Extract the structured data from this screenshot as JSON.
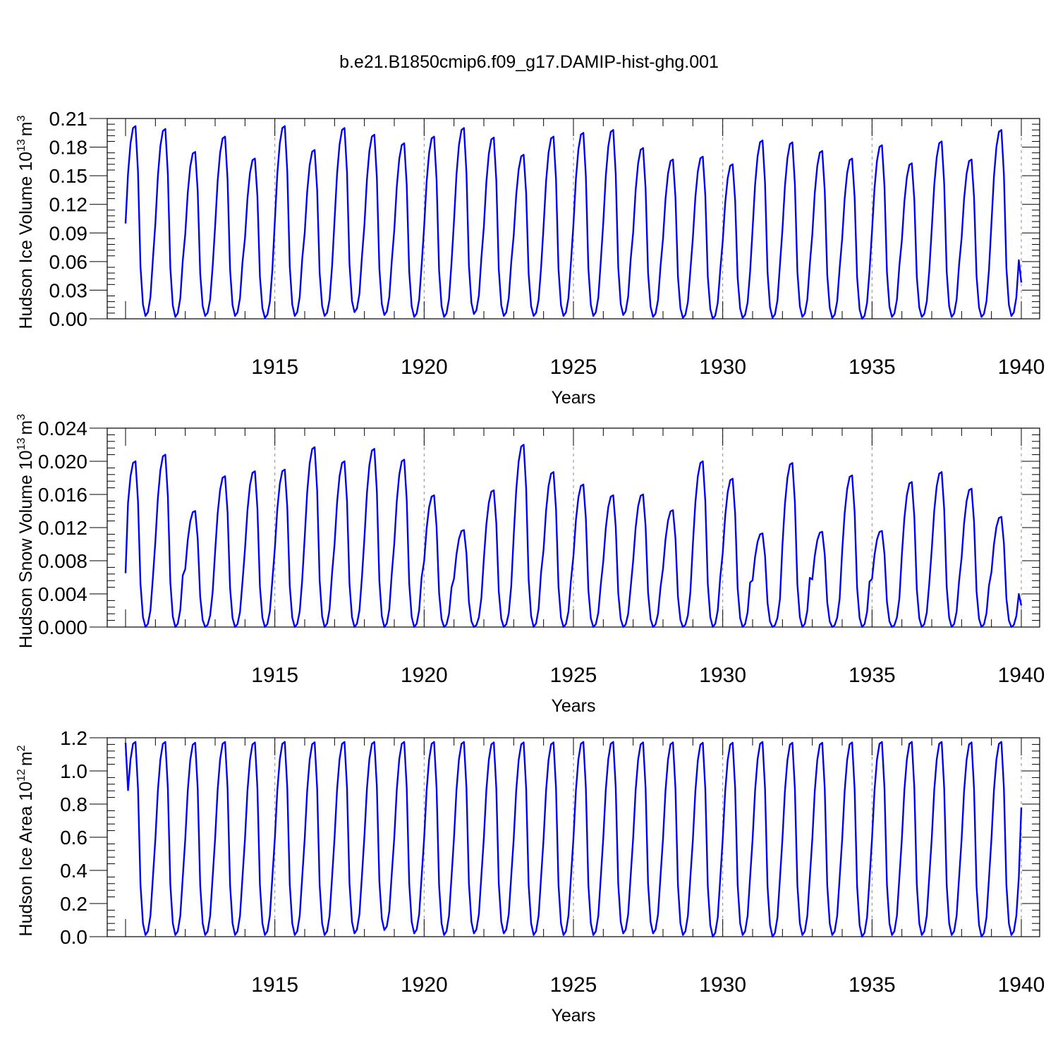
{
  "figure_title": "b.e21.B1850cmip6.f09_g17.DAMIP-hist-ghg.001",
  "colors": {
    "series": "#0000ff",
    "axes": "#000000",
    "grid": "#888888"
  },
  "chart_data": [
    {
      "type": "line",
      "ylabel": {
        "text": "Hudson Ice Volume 10",
        "exp": "13",
        "unit": "m",
        "unit_exp": "3"
      },
      "xlabel": "Years",
      "xlim": [
        1910,
        1940
      ],
      "ylim": [
        0.0,
        0.21
      ],
      "yticks": [
        "0.00",
        "0.03",
        "0.06",
        "0.09",
        "0.12",
        "0.15",
        "0.18",
        "0.21"
      ],
      "xticks": [
        "1915",
        "1920",
        "1925",
        "1930",
        "1935",
        "1940"
      ],
      "grid": "vertical dashed at labeled years",
      "start_value": 0.1,
      "start_month_index": 0,
      "end_value": 0.038,
      "series": [
        {
          "name": "Hudson Ice Volume",
          "annual_peaks": [
            0.202,
            0.199,
            0.175,
            0.191,
            0.168,
            0.202,
            0.177,
            0.2,
            0.193,
            0.184,
            0.191,
            0.2,
            0.19,
            0.172,
            0.191,
            0.195,
            0.198,
            0.179,
            0.167,
            0.17,
            0.162,
            0.187,
            0.185,
            0.176,
            0.168,
            0.182,
            0.163,
            0.186,
            0.167,
            0.198
          ],
          "annual_minimums": [
            0.003,
            0.002,
            0.003,
            0.003,
            0.001,
            0.003,
            0.003,
            0.007,
            0.004,
            0.002,
            0.002,
            0.005,
            0.003,
            0.003,
            0.003,
            0.003,
            0.004,
            0.002,
            0.001,
            0.0,
            0.001,
            0.001,
            0.002,
            0.001,
            0.0,
            0.002,
            0.002,
            0.002,
            0.002,
            0.003
          ]
        }
      ]
    },
    {
      "type": "line",
      "ylabel": {
        "text": "Hudson Snow Volume 10",
        "exp": "13",
        "unit": "m",
        "unit_exp": "3"
      },
      "xlabel": "Years",
      "xlim": [
        1910,
        1940
      ],
      "ylim": [
        0.0,
        0.024
      ],
      "yticks": [
        "0.000",
        "0.004",
        "0.008",
        "0.012",
        "0.016",
        "0.020",
        "0.024"
      ],
      "xticks": [
        "1915",
        "1920",
        "1925",
        "1930",
        "1935",
        "1940"
      ],
      "grid": "vertical dashed at labeled years",
      "start_value": 0.0065,
      "start_month_index": 0,
      "end_value": 0.0026,
      "series": [
        {
          "name": "Hudson Snow Volume",
          "annual_peaks": [
            0.02,
            0.0208,
            0.014,
            0.0182,
            0.0188,
            0.019,
            0.0217,
            0.02,
            0.0215,
            0.0202,
            0.0159,
            0.0117,
            0.0165,
            0.022,
            0.0187,
            0.0172,
            0.0159,
            0.016,
            0.0141,
            0.02,
            0.0179,
            0.0113,
            0.0198,
            0.0115,
            0.0183,
            0.0116,
            0.0175,
            0.0187,
            0.0167,
            0.0133
          ],
          "annual_minimums": [
            0.0,
            0.0,
            0.0,
            0.0,
            0.0,
            0.0,
            0.0,
            0.0,
            0.0,
            0.0,
            0.0,
            0.0,
            0.0,
            0.0,
            0.0,
            0.0,
            0.0,
            0.0,
            0.0,
            0.0,
            0.0,
            0.0,
            0.0,
            0.0,
            0.0,
            0.0,
            0.0,
            0.0,
            0.0,
            0.0
          ]
        }
      ]
    },
    {
      "type": "line",
      "ylabel": {
        "text": "Hudson Ice Area 10",
        "exp": "12",
        "unit": "m",
        "unit_exp": "2"
      },
      "xlabel": "Years",
      "xlim": [
        1910,
        1940
      ],
      "ylim": [
        0.0,
        1.2
      ],
      "yticks": [
        "0.0",
        "0.2",
        "0.4",
        "0.6",
        "0.8",
        "1.0",
        "1.2"
      ],
      "xticks": [
        "1915",
        "1920",
        "1925",
        "1930",
        "1935",
        "1940"
      ],
      "grid": "vertical dashed at labeled years",
      "start_value": 1.17,
      "start_month_index": 0,
      "end_value": 0.78,
      "series": [
        {
          "name": "Hudson Ice Area",
          "annual_peaks": [
            1.175,
            1.175,
            1.17,
            1.175,
            1.172,
            1.175,
            1.173,
            1.175,
            1.175,
            1.175,
            1.175,
            1.175,
            1.172,
            1.172,
            1.172,
            1.175,
            1.175,
            1.172,
            1.172,
            1.17,
            1.17,
            1.175,
            1.17,
            1.17,
            1.172,
            1.175,
            1.175,
            1.175,
            1.172,
            1.175
          ],
          "annual_minimums": [
            0.01,
            0.01,
            0.01,
            0.01,
            0.01,
            0.01,
            0.01,
            0.02,
            0.04,
            0.02,
            0.01,
            0.02,
            0.02,
            0.01,
            0.01,
            0.01,
            0.02,
            0.02,
            0.01,
            0.0,
            0.01,
            0.0,
            0.01,
            0.01,
            0.0,
            0.01,
            0.01,
            0.01,
            0.0,
            0.01
          ]
        }
      ]
    }
  ]
}
